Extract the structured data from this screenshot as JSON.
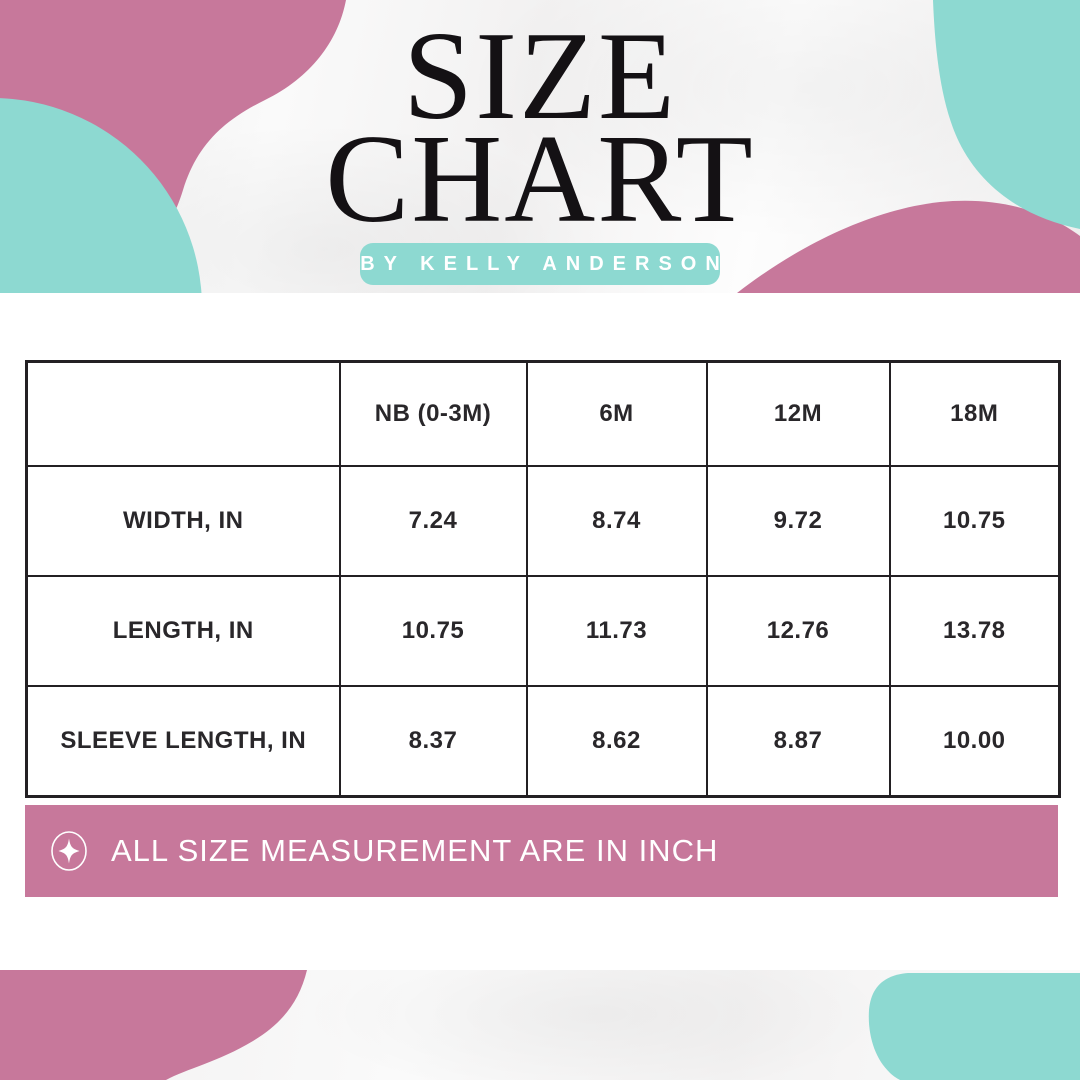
{
  "header": {
    "title_line1": "SIZE",
    "title_line2": "CHART",
    "badge_label": "BY KELLY ANDERSON"
  },
  "note": {
    "icon": "sparkle-icon",
    "text": "ALL SIZE MEASUREMENT ARE IN INCH"
  },
  "colors": {
    "pink": "#c7789b",
    "teal": "#8dd9d1",
    "title_ink": "#141114",
    "table_line": "#232023",
    "banner_text": "#ffffff"
  },
  "chart_data": {
    "type": "table",
    "title": "SIZE CHART",
    "subtitle": "BY KELLY ANDERSON",
    "columns": [
      "NB (0-3M)",
      "6M",
      "12M",
      "18M"
    ],
    "rows": [
      {
        "label": "WIDTH, IN",
        "values": [
          "7.24",
          "8.74",
          "9.72",
          "10.75"
        ]
      },
      {
        "label": "LENGTH, IN",
        "values": [
          "10.75",
          "11.73",
          "12.76",
          "13.78"
        ]
      },
      {
        "label": "SLEEVE LENGTH, IN",
        "values": [
          "8.37",
          "8.62",
          "8.87",
          "10.00"
        ]
      }
    ],
    "units": "inches",
    "footnote": "ALL SIZE MEASUREMENT ARE IN INCH"
  }
}
